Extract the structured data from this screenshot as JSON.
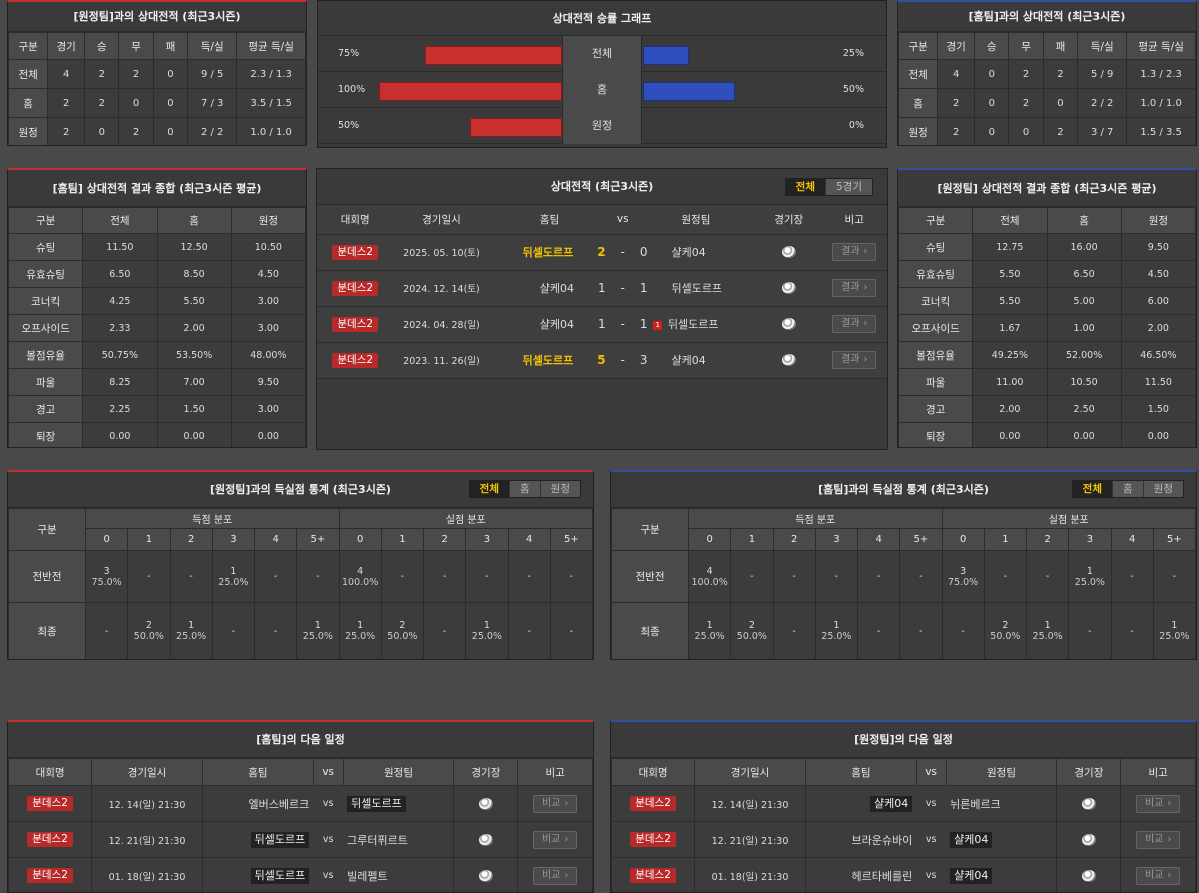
{
  "away_h2h": {
    "title": "[원정팀]과의 상대전적 (최근3시즌)",
    "headers": [
      "구분",
      "경기",
      "승",
      "무",
      "패",
      "득/실",
      "평균 득/실"
    ],
    "rows": [
      [
        "전체",
        "4",
        "2",
        "2",
        "0",
        "9 / 5",
        "2.3 / 1.3"
      ],
      [
        "홈",
        "2",
        "2",
        "0",
        "0",
        "7 / 3",
        "3.5 / 1.5"
      ],
      [
        "원정",
        "2",
        "0",
        "2",
        "0",
        "2 / 2",
        "1.0 / 1.0"
      ]
    ]
  },
  "graph": {
    "title": "상대전적 승률 그래프",
    "rows": [
      {
        "label": "전체",
        "left": "75%",
        "right": "25%",
        "lv": 75,
        "rv": 25
      },
      {
        "label": "홈",
        "left": "100%",
        "right": "50%",
        "lv": 100,
        "rv": 50
      },
      {
        "label": "원정",
        "left": "50%",
        "right": "0%",
        "lv": 50,
        "rv": 0
      }
    ]
  },
  "home_h2h": {
    "title": "[홈팀]과의 상대전적 (최근3시즌)",
    "headers": [
      "구분",
      "경기",
      "승",
      "무",
      "패",
      "득/실",
      "평균 득/실"
    ],
    "rows": [
      [
        "전체",
        "4",
        "0",
        "2",
        "2",
        "5 / 9",
        "1.3 / 2.3"
      ],
      [
        "홈",
        "2",
        "0",
        "2",
        "0",
        "2 / 2",
        "1.0 / 1.0"
      ],
      [
        "원정",
        "2",
        "0",
        "0",
        "2",
        "3 / 7",
        "1.5 / 3.5"
      ]
    ]
  },
  "home_summary": {
    "title": "[홈팀] 상대전적 결과 종합 (최근3시즌 평균)",
    "headers": [
      "구분",
      "전체",
      "홈",
      "원정"
    ],
    "rows": [
      [
        "슈팅",
        "11.50",
        "12.50",
        "10.50"
      ],
      [
        "유효슈팅",
        "6.50",
        "8.50",
        "4.50"
      ],
      [
        "코너킥",
        "4.25",
        "5.50",
        "3.00"
      ],
      [
        "오프사이드",
        "2.33",
        "2.00",
        "3.00"
      ],
      [
        "볼점유율",
        "50.75%",
        "53.50%",
        "48.00%"
      ],
      [
        "파울",
        "8.25",
        "7.00",
        "9.50"
      ],
      [
        "경고",
        "2.25",
        "1.50",
        "3.00"
      ],
      [
        "퇴장",
        "0.00",
        "0.00",
        "0.00"
      ]
    ]
  },
  "away_summary": {
    "title": "[원정팀] 상대전적 결과 종합 (최근3시즌 평균)",
    "headers": [
      "구분",
      "전체",
      "홈",
      "원정"
    ],
    "rows": [
      [
        "슈팅",
        "12.75",
        "16.00",
        "9.50"
      ],
      [
        "유효슈팅",
        "5.50",
        "6.50",
        "4.50"
      ],
      [
        "코너킥",
        "5.50",
        "5.00",
        "6.00"
      ],
      [
        "오프사이드",
        "1.67",
        "1.00",
        "2.00"
      ],
      [
        "볼점유율",
        "49.25%",
        "52.00%",
        "46.50%"
      ],
      [
        "파울",
        "11.00",
        "10.50",
        "11.50"
      ],
      [
        "경고",
        "2.00",
        "2.50",
        "1.50"
      ],
      [
        "퇴장",
        "0.00",
        "0.00",
        "0.00"
      ]
    ]
  },
  "matches": {
    "title": "상대전적 (최근3시즌)",
    "tabs": [
      "전체",
      "5경기"
    ],
    "headers": [
      "대회명",
      "경기일시",
      "홈팀",
      "vs",
      "원정팀",
      "경기장",
      "비고"
    ],
    "rows": [
      {
        "league": "분데스2",
        "date": "2025. 05. 10(토)",
        "home": "뒤셀도르프",
        "hs": "2",
        "sep": "-",
        "as": "0",
        "away": "샬케04",
        "badge": "",
        "hl": "home",
        "btn": "결과"
      },
      {
        "league": "분데스2",
        "date": "2024. 12. 14(토)",
        "home": "샬케04",
        "hs": "1",
        "sep": "-",
        "as": "1",
        "away": "뒤셀도르프",
        "badge": "",
        "hl": "",
        "btn": "결과"
      },
      {
        "league": "분데스2",
        "date": "2024. 04. 28(일)",
        "home": "샬케04",
        "hs": "1",
        "sep": "-",
        "as": "1",
        "away": "뒤셀도르프",
        "badge": "1",
        "hl": "",
        "btn": "결과"
      },
      {
        "league": "분데스2",
        "date": "2023. 11. 26(일)",
        "home": "뒤셀도르프",
        "hs": "5",
        "sep": "-",
        "as": "3",
        "away": "샬케04",
        "badge": "",
        "hl": "home",
        "btn": "결과"
      }
    ]
  },
  "away_goals": {
    "title": "[원정팀]과의 득실점 통계 (최근3시즌)",
    "tabs": [
      "전체",
      "홈",
      "원정"
    ],
    "col0": "구분",
    "g1": "득점 분포",
    "g2": "실점 분포",
    "cols": [
      "0",
      "1",
      "2",
      "3",
      "4",
      "5+",
      "0",
      "1",
      "2",
      "3",
      "4",
      "5+"
    ],
    "rows": [
      {
        "label": "전반전",
        "cells": [
          [
            "3",
            "75.0%"
          ],
          [
            "-",
            ""
          ],
          [
            "-",
            ""
          ],
          [
            "1",
            "25.0%"
          ],
          [
            "-",
            ""
          ],
          [
            "-",
            ""
          ],
          [
            "4",
            "100.0%"
          ],
          [
            "-",
            ""
          ],
          [
            "-",
            ""
          ],
          [
            "-",
            ""
          ],
          [
            "-",
            ""
          ],
          [
            "-",
            ""
          ]
        ]
      },
      {
        "label": "최종",
        "cells": [
          [
            "-",
            ""
          ],
          [
            "2",
            "50.0%"
          ],
          [
            "1",
            "25.0%"
          ],
          [
            "-",
            ""
          ],
          [
            "-",
            ""
          ],
          [
            "1",
            "25.0%"
          ],
          [
            "1",
            "25.0%"
          ],
          [
            "2",
            "50.0%"
          ],
          [
            "-",
            ""
          ],
          [
            "1",
            "25.0%"
          ],
          [
            "-",
            ""
          ],
          [
            "-",
            ""
          ]
        ]
      }
    ]
  },
  "home_goals": {
    "title": "[홈팀]과의 득실점 통계 (최근3시즌)",
    "tabs": [
      "전체",
      "홈",
      "원정"
    ],
    "col0": "구분",
    "g1": "득점 분포",
    "g2": "실점 분포",
    "cols": [
      "0",
      "1",
      "2",
      "3",
      "4",
      "5+",
      "0",
      "1",
      "2",
      "3",
      "4",
      "5+"
    ],
    "rows": [
      {
        "label": "전반전",
        "cells": [
          [
            "4",
            "100.0%"
          ],
          [
            "-",
            ""
          ],
          [
            "-",
            ""
          ],
          [
            "-",
            ""
          ],
          [
            "-",
            ""
          ],
          [
            "-",
            ""
          ],
          [
            "3",
            "75.0%"
          ],
          [
            "-",
            ""
          ],
          [
            "-",
            ""
          ],
          [
            "1",
            "25.0%"
          ],
          [
            "-",
            ""
          ],
          [
            "-",
            ""
          ]
        ]
      },
      {
        "label": "최종",
        "cells": [
          [
            "1",
            "25.0%"
          ],
          [
            "2",
            "50.0%"
          ],
          [
            "-",
            ""
          ],
          [
            "1",
            "25.0%"
          ],
          [
            "-",
            ""
          ],
          [
            "-",
            ""
          ],
          [
            "-",
            ""
          ],
          [
            "2",
            "50.0%"
          ],
          [
            "1",
            "25.0%"
          ],
          [
            "-",
            ""
          ],
          [
            "-",
            ""
          ],
          [
            "1",
            "25.0%"
          ]
        ]
      }
    ]
  },
  "home_next": {
    "title": "[홈팀]의 다음 일정",
    "headers": [
      "대회명",
      "경기일시",
      "홈팀",
      "vs",
      "원정팀",
      "경기장",
      "비고"
    ],
    "rows": [
      {
        "league": "분데스2",
        "date": "12. 14(일) 21:30",
        "home": "엘버스베르크",
        "vs": "vs",
        "away": "뒤셀도르프",
        "box": "away",
        "btn": "비교"
      },
      {
        "league": "분데스2",
        "date": "12. 21(일) 21:30",
        "home": "뒤셀도르프",
        "vs": "vs",
        "away": "그루터퓌르트",
        "box": "home",
        "btn": "비교"
      },
      {
        "league": "분데스2",
        "date": "01. 18(일) 21:30",
        "home": "뒤셀도르프",
        "vs": "vs",
        "away": "빌레펠트",
        "box": "home",
        "btn": "비교"
      }
    ]
  },
  "away_next": {
    "title": "[원정팀]의 다음 일정",
    "headers": [
      "대회명",
      "경기일시",
      "홈팀",
      "vs",
      "원정팀",
      "경기장",
      "비고"
    ],
    "rows": [
      {
        "league": "분데스2",
        "date": "12. 14(일) 21:30",
        "home": "샬케04",
        "vs": "vs",
        "away": "뉘른베르크",
        "box": "home",
        "btn": "비교"
      },
      {
        "league": "분데스2",
        "date": "12. 21(일) 21:30",
        "home": "브라운슈바이",
        "vs": "vs",
        "away": "샬케04",
        "box": "away",
        "btn": "비교"
      },
      {
        "league": "분데스2",
        "date": "01. 18(일) 21:30",
        "home": "헤르타베를린",
        "vs": "vs",
        "away": "샬케04",
        "box": "away",
        "btn": "비교"
      }
    ]
  },
  "colors": {
    "red": "#c83030",
    "blue": "#2f4fbf",
    "highlight": "#f0c000"
  }
}
